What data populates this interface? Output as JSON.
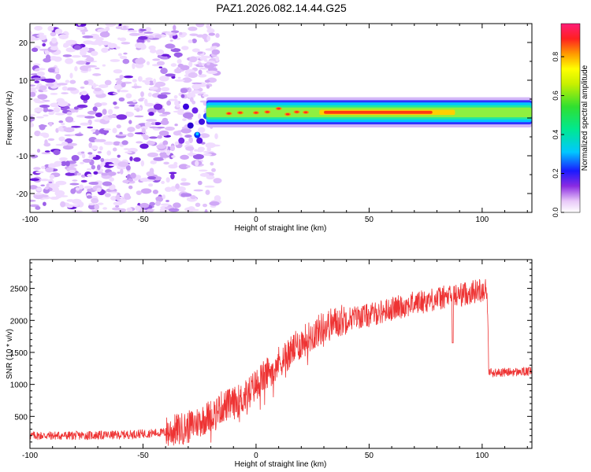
{
  "title": "PAZ1.2026.082.14.44.G25",
  "chart_data": [
    {
      "type": "heatmap",
      "name": "spectrogram",
      "xlabel": "Height of straight line (km)",
      "ylabel": "Frequency (Hz)",
      "xlim": [
        -100,
        122
      ],
      "ylim": [
        -25,
        25
      ],
      "xticks": [
        "-100",
        "-50",
        "0",
        "50",
        "100"
      ],
      "yticks": [
        "20",
        "10",
        "0",
        "-10",
        "-20"
      ],
      "colorbar": {
        "label": "Normalized spectral amplitude",
        "range": [
          0,
          0.97
        ],
        "ticks": [
          "0.0",
          "0.2",
          "0.4",
          "0.6",
          "0.8"
        ]
      },
      "features": {
        "noise_region_km": [
          -100,
          -17
        ],
        "signal_line_start_km": -22,
        "signal_line_freq_hz": 1.5,
        "strong_band_km": [
          28,
          88
        ]
      }
    },
    {
      "type": "line",
      "name": "snr",
      "xlabel": "Height of straight line (km)",
      "ylabel": "SNR (10 * v/v)",
      "xlim": [
        -100,
        122
      ],
      "ylim": [
        0,
        2950
      ],
      "xticks": [
        "-100",
        "-50",
        "0",
        "50",
        "100"
      ],
      "yticks": [
        "2500",
        "2000",
        "1500",
        "1000",
        "500"
      ],
      "color": "#ee3333",
      "x": [
        -100,
        -80,
        -60,
        -40,
        -30,
        -20,
        -15,
        -10,
        -5,
        0,
        10,
        20,
        30,
        40,
        50,
        60,
        70,
        80,
        90,
        100,
        102,
        103,
        105,
        110,
        122
      ],
      "y": [
        200,
        200,
        210,
        250,
        330,
        520,
        650,
        700,
        800,
        1000,
        1350,
        1650,
        1900,
        2030,
        2080,
        2180,
        2270,
        2340,
        2400,
        2480,
        2500,
        1200,
        1180,
        1190,
        1200
      ]
    }
  ]
}
